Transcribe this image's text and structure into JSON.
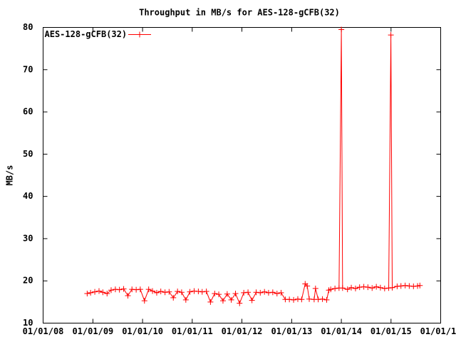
{
  "chart_data": {
    "type": "line",
    "title": "Throughput in MB/s for AES-128-gCFB(32)",
    "ylabel": "MB/s",
    "legend": "top-left",
    "grid": false,
    "xlim": [
      "2008-01-01",
      "2016-01-01"
    ],
    "xticks": [
      {
        "value": "2008-01-01",
        "label": "01/01/08"
      },
      {
        "value": "2009-01-01",
        "label": "01/01/09"
      },
      {
        "value": "2010-01-01",
        "label": "01/01/10"
      },
      {
        "value": "2011-01-01",
        "label": "01/01/11"
      },
      {
        "value": "2012-01-01",
        "label": "01/01/12"
      },
      {
        "value": "2013-01-01",
        "label": "01/01/13"
      },
      {
        "value": "2014-01-01",
        "label": "01/01/14"
      },
      {
        "value": "2015-01-01",
        "label": "01/01/15"
      },
      {
        "value": "2016-01-01",
        "label": "01/01/16"
      }
    ],
    "ylim": [
      10,
      80
    ],
    "yticks": [
      10,
      20,
      30,
      40,
      50,
      60,
      70,
      80
    ],
    "x": [
      "2008-11-20",
      "2008-12-15",
      "2009-01-15",
      "2009-02-15",
      "2009-03-15",
      "2009-04-15",
      "2009-05-15",
      "2009-06-15",
      "2009-07-15",
      "2009-08-15",
      "2009-09-15",
      "2009-10-15",
      "2009-11-15",
      "2009-12-15",
      "2010-01-15",
      "2010-02-15",
      "2010-03-15",
      "2010-04-15",
      "2010-05-15",
      "2010-06-15",
      "2010-07-15",
      "2010-08-15",
      "2010-09-15",
      "2010-10-15",
      "2010-11-15",
      "2010-12-15",
      "2011-01-15",
      "2011-02-15",
      "2011-03-15",
      "2011-04-15",
      "2011-05-15",
      "2011-06-15",
      "2011-07-15",
      "2011-08-15",
      "2011-09-15",
      "2011-10-15",
      "2011-11-15",
      "2011-12-15",
      "2012-01-15",
      "2012-02-15",
      "2012-03-15",
      "2012-04-15",
      "2012-05-15",
      "2012-06-15",
      "2012-07-15",
      "2012-08-15",
      "2012-09-15",
      "2012-10-15",
      "2012-11-15",
      "2012-12-15",
      "2013-01-15",
      "2013-02-15",
      "2013-03-15",
      "2013-04-10",
      "2013-04-25",
      "2013-05-10",
      "2013-06-15",
      "2013-06-25",
      "2013-07-15",
      "2013-08-15",
      "2013-09-15",
      "2013-10-01",
      "2013-10-15",
      "2013-11-15",
      "2013-12-15",
      "2014-01-01",
      "2014-01-10",
      "2014-02-15",
      "2014-03-15",
      "2014-04-15",
      "2014-05-15",
      "2014-06-15",
      "2014-07-15",
      "2014-08-15",
      "2014-09-15",
      "2014-10-15",
      "2014-11-15",
      "2014-12-15",
      "2014-12-31",
      "2015-01-10",
      "2015-02-15",
      "2015-03-15",
      "2015-04-15",
      "2015-05-15",
      "2015-06-15",
      "2015-07-15",
      "2015-08-01"
    ],
    "series": [
      {
        "name": "AES-128-gCFB(32)",
        "color": "#ff0000",
        "values": [
          17.0,
          17.2,
          17.4,
          17.6,
          17.3,
          17.0,
          17.8,
          18.0,
          17.9,
          18.1,
          16.5,
          18.0,
          17.9,
          18.0,
          15.3,
          18.0,
          17.6,
          17.2,
          17.5,
          17.3,
          17.4,
          16.0,
          17.5,
          17.3,
          15.5,
          17.4,
          17.6,
          17.5,
          17.4,
          17.5,
          15.0,
          17.0,
          16.8,
          15.3,
          16.9,
          15.5,
          17.0,
          14.7,
          17.2,
          17.3,
          15.4,
          17.3,
          17.2,
          17.4,
          17.2,
          17.3,
          17.0,
          17.2,
          15.6,
          15.6,
          15.5,
          15.7,
          15.6,
          19.3,
          18.8,
          15.7,
          15.6,
          18.2,
          15.6,
          15.7,
          15.5,
          17.8,
          18.0,
          18.2,
          18.3,
          79.5,
          18.3,
          18.0,
          18.4,
          18.2,
          18.5,
          18.6,
          18.5,
          18.3,
          18.6,
          18.4,
          18.2,
          18.3,
          78.2,
          18.4,
          18.7,
          18.8,
          18.9,
          18.8,
          18.7,
          18.8,
          18.9
        ]
      }
    ]
  }
}
